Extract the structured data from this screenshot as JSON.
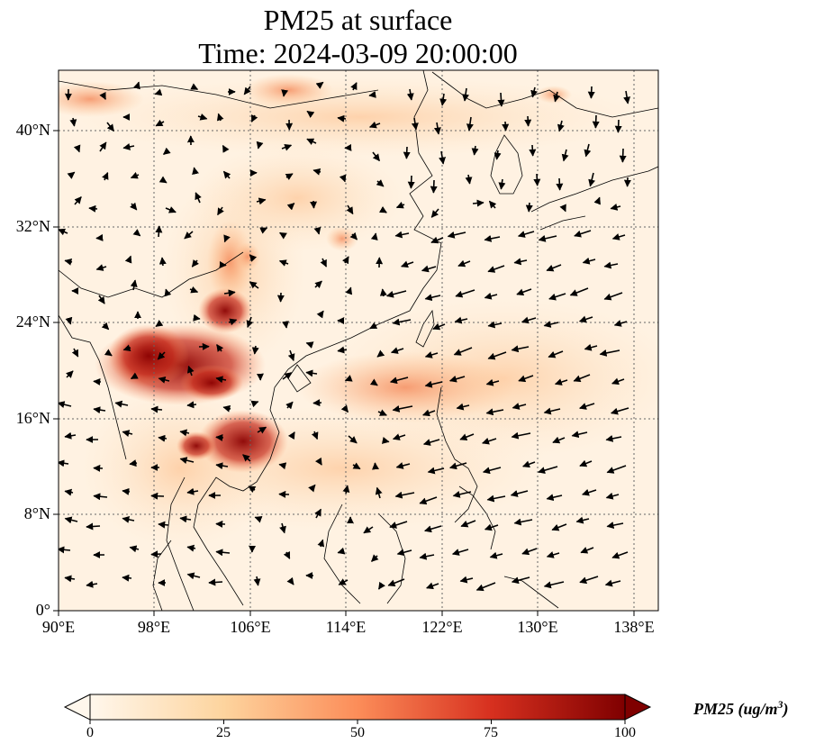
{
  "title": "PM25 at surface",
  "subtitle": "Time: 2024-03-09 20:00:00",
  "map": {
    "lon_ticks": [
      "90°E",
      "98°E",
      "106°E",
      "114°E",
      "122°E",
      "130°E",
      "138°E"
    ],
    "lat_ticks": [
      "40°N",
      "32°N",
      "24°N",
      "16°N",
      "8°N",
      "0°"
    ],
    "lon_range": [
      90,
      140
    ],
    "lat_range": [
      0,
      45
    ],
    "gridlines": true,
    "colormap": "OrRd"
  },
  "colorbar": {
    "ticks": [
      "0",
      "25",
      "50",
      "75",
      "100"
    ],
    "range": [
      0,
      100
    ],
    "extend": "both",
    "label_main": "PM25 (ug/m",
    "label_sup": "3",
    "label_end": ")"
  },
  "colors": {
    "low": "#fff7ec",
    "mid": "#fdbb84",
    "high": "#d7301f",
    "max": "#7f0000"
  }
}
